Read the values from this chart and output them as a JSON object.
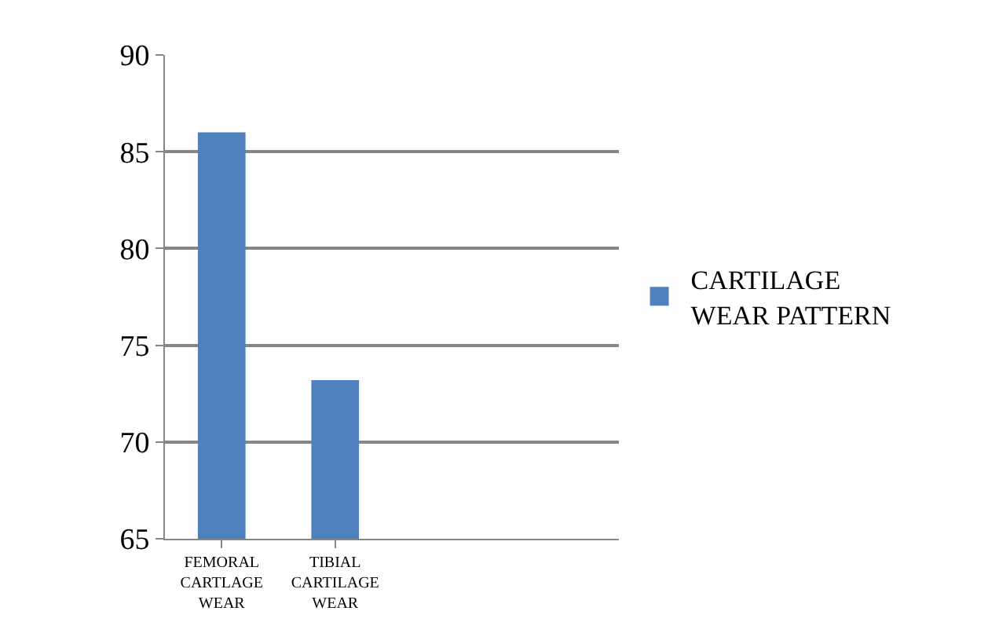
{
  "chart_data": {
    "type": "bar",
    "categories": [
      "FEMORAL CARTLAGE WEAR",
      "TIBIAL CARTILAGE WEAR",
      null,
      null
    ],
    "series": [
      {
        "name": "CARTILAGE WEAR PATTERN",
        "color": "#4f81bd",
        "values": [
          86,
          73.2,
          null,
          null
        ]
      }
    ],
    "ylim": [
      65,
      90
    ],
    "yticks": [
      65,
      70,
      75,
      80,
      85,
      90
    ],
    "grid": "y",
    "legend": "right"
  }
}
